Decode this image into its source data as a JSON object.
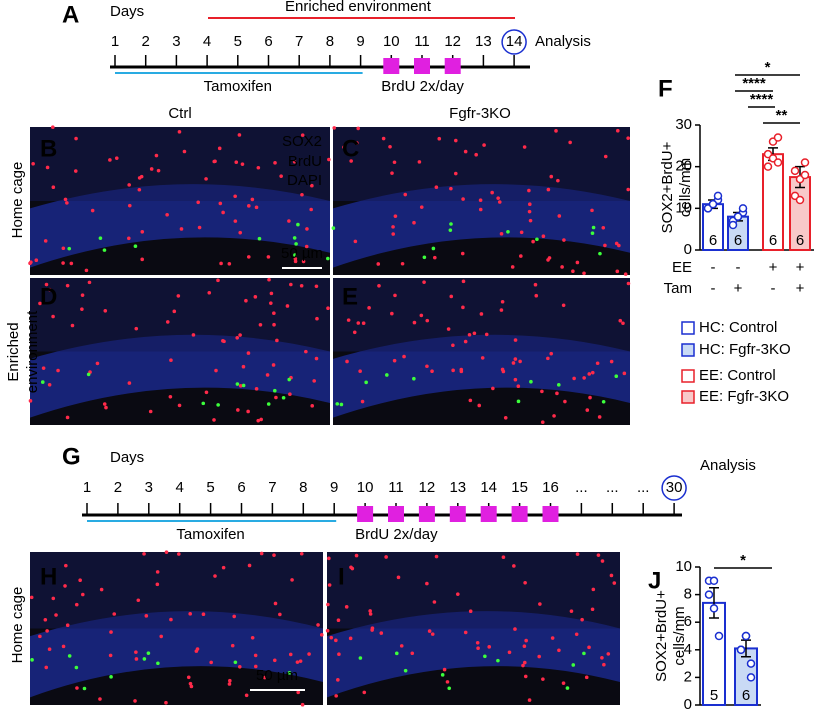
{
  "panel_labels": [
    "A",
    "B",
    "C",
    "D",
    "E",
    "F",
    "G",
    "H",
    "I",
    "J"
  ],
  "timeline_a": {
    "days_label": "Days",
    "period": "Enriched environment",
    "days": [
      "1",
      "2",
      "3",
      "4",
      "5",
      "6",
      "7",
      "8",
      "9",
      "10",
      "11",
      "12",
      "13",
      "14"
    ],
    "analysis": "Analysis",
    "tamoxifen": "Tamoxifen",
    "brdu": "BrdU 2x/day"
  },
  "timeline_g": {
    "days_label": "Days",
    "days": [
      "1",
      "2",
      "3",
      "4",
      "5",
      "6",
      "7",
      "8",
      "9",
      "10",
      "11",
      "12",
      "13",
      "14",
      "15",
      "16",
      "...",
      "...",
      "...",
      "30"
    ],
    "analysis": "Analysis",
    "tamoxifen": "Tamoxifen",
    "brdu": "BrdU 2x/day"
  },
  "images": {
    "column_labels": [
      "Ctrl",
      "Fgfr-3KO"
    ],
    "row_labels": [
      "Home cage",
      "Enriched",
      "environment"
    ],
    "channels": [
      "SOX2",
      "BrdU",
      "DAPI"
    ],
    "scale_bar": "50 µm",
    "row_label_g": "Home cage",
    "scale_bar_g": "50 µm"
  },
  "chart_data": [
    {
      "type": "bar",
      "ylabel": [
        "SOX2+BrdU+",
        "cells/mm"
      ],
      "ylim": [
        0,
        30
      ],
      "yticks": [
        0,
        10,
        20,
        30
      ],
      "series": [
        {
          "name": "HC: Control",
          "color": "#1a2fd0",
          "fill": "#ffffff",
          "values": [
            11
          ],
          "errors": [
            1
          ],
          "points": [
            10,
            11,
            12,
            10,
            11,
            13
          ],
          "n": [
            6
          ]
        },
        {
          "name": "HC: Fgfr-3KO",
          "color": "#1a2fd0",
          "fill": "#c9daf5",
          "values": [
            8
          ],
          "errors": [
            1
          ],
          "points": [
            7,
            8,
            9,
            6,
            8,
            10
          ],
          "n": [
            6
          ]
        },
        {
          "name": "EE: Control",
          "color": "#e8202a",
          "fill": "#ffffff",
          "values": [
            23
          ],
          "errors": [
            1.5
          ],
          "points": [
            20,
            26,
            27,
            23,
            22,
            21
          ],
          "n": [
            6
          ]
        },
        {
          "name": "EE: Fgfr-3KO",
          "color": "#e8202a",
          "fill": "#f8c9c9",
          "values": [
            17.5
          ],
          "errors": [
            2.5
          ],
          "points": [
            13,
            17,
            21,
            19,
            12,
            18
          ],
          "n": [
            6
          ]
        }
      ],
      "conditions": [
        {
          "label": "EE",
          "signs": [
            "-",
            "-",
            "+",
            "+"
          ]
        },
        {
          "label": "Tam",
          "signs": [
            "-",
            "+",
            "-",
            "+"
          ]
        }
      ],
      "significance": [
        "*",
        "****",
        "****",
        "**"
      ]
    },
    {
      "type": "bar",
      "ylabel": [
        "SOX2+BrdU+",
        "cells/mm"
      ],
      "ylim": [
        0,
        10
      ],
      "yticks": [
        0,
        2,
        4,
        6,
        8,
        10
      ],
      "series": [
        {
          "color": "#1a2fd0",
          "fill": "#ffffff",
          "values": [
            7.4
          ],
          "errors": [
            1.1
          ],
          "points": [
            9,
            7,
            5,
            8,
            9
          ],
          "n": [
            5
          ]
        },
        {
          "color": "#1a2fd0",
          "fill": "#c9daf5",
          "values": [
            4.1
          ],
          "errors": [
            0.6
          ],
          "points": [
            4,
            5,
            3,
            4,
            5,
            2
          ],
          "n": [
            6
          ]
        }
      ],
      "significance": [
        "*"
      ]
    }
  ]
}
